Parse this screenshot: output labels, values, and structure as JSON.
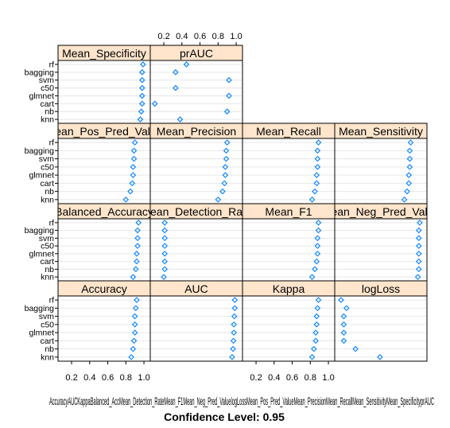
{
  "chart_data": {
    "type": "scatter",
    "layout": "lattice-dotplot",
    "xlabel": "Confidence Level: 0.95",
    "xlim": [
      0.05,
      1.07
    ],
    "xticks": [
      0.2,
      0.4,
      0.6,
      0.8,
      1.0
    ],
    "xtick_labels": [
      "0.2",
      "0.4",
      "0.6",
      "0.8",
      "1.0"
    ],
    "garbled_label": "AccuracyAUCKappaBalanced_AccMean_Detection_RateMean_F1Mean_Neg_Pred_ValuelogLossMean_Pos_Pred_ValueMean_PrecisionMean_RecallMean_SensitivityMean_SpecificityprAUC",
    "categories": [
      "rf",
      "bagging",
      "svm",
      "c50",
      "glmnet",
      "cart",
      "nb",
      "knn"
    ],
    "marker_color": "#0080ff",
    "strip_color": "#ffe5cc",
    "panels": [
      {
        "strip": "Accuracy",
        "values": [
          0.92,
          0.91,
          0.9,
          0.9,
          0.9,
          0.89,
          0.88,
          0.86
        ]
      },
      {
        "strip": "AUC",
        "values": [
          0.985,
          0.985,
          0.98,
          0.975,
          0.975,
          0.97,
          0.965,
          0.955
        ]
      },
      {
        "strip": "Kappa",
        "values": [
          0.89,
          0.88,
          0.87,
          0.87,
          0.86,
          0.86,
          0.84,
          0.82
        ]
      },
      {
        "strip": "logLoss",
        "values": [
          0.12,
          0.18,
          0.15,
          0.15,
          0.15,
          0.15,
          0.28,
          0.55
        ]
      },
      {
        "strip": "Balanced_Accuracy",
        "values": [
          0.94,
          0.93,
          0.93,
          0.93,
          0.92,
          0.92,
          0.91,
          0.88
        ]
      },
      {
        "strip": "Mean_Detection_Rate",
        "values": [
          0.21,
          0.21,
          0.21,
          0.21,
          0.21,
          0.21,
          0.21,
          0.2
        ]
      },
      {
        "strip": "Mean_F1",
        "values": [
          0.89,
          0.89,
          0.88,
          0.88,
          0.88,
          0.87,
          0.85,
          0.82
        ]
      },
      {
        "strip": "Mean_Neg_Pred_Value",
        "values": [
          0.99,
          0.98,
          0.98,
          0.98,
          0.98,
          0.98,
          0.98,
          0.97
        ]
      },
      {
        "strip": "Mean_Pos_Pred_Value",
        "values": [
          0.9,
          0.89,
          0.89,
          0.88,
          0.88,
          0.87,
          0.85,
          0.8
        ]
      },
      {
        "strip": "Mean_Precision",
        "values": [
          0.9,
          0.89,
          0.89,
          0.88,
          0.88,
          0.87,
          0.85,
          0.8
        ]
      },
      {
        "strip": "Mean_Recall",
        "values": [
          0.89,
          0.88,
          0.88,
          0.88,
          0.87,
          0.87,
          0.85,
          0.82
        ]
      },
      {
        "strip": "Mean_Sensitivity",
        "values": [
          0.89,
          0.88,
          0.88,
          0.88,
          0.87,
          0.87,
          0.85,
          0.82
        ]
      },
      {
        "strip": "Mean_Specificity",
        "values": [
          0.99,
          0.98,
          0.98,
          0.98,
          0.98,
          0.98,
          0.97,
          0.96
        ]
      },
      {
        "strip": "prAUC",
        "values": [
          0.45,
          0.33,
          0.92,
          0.33,
          0.92,
          0.1,
          0.9,
          0.38
        ]
      }
    ]
  }
}
